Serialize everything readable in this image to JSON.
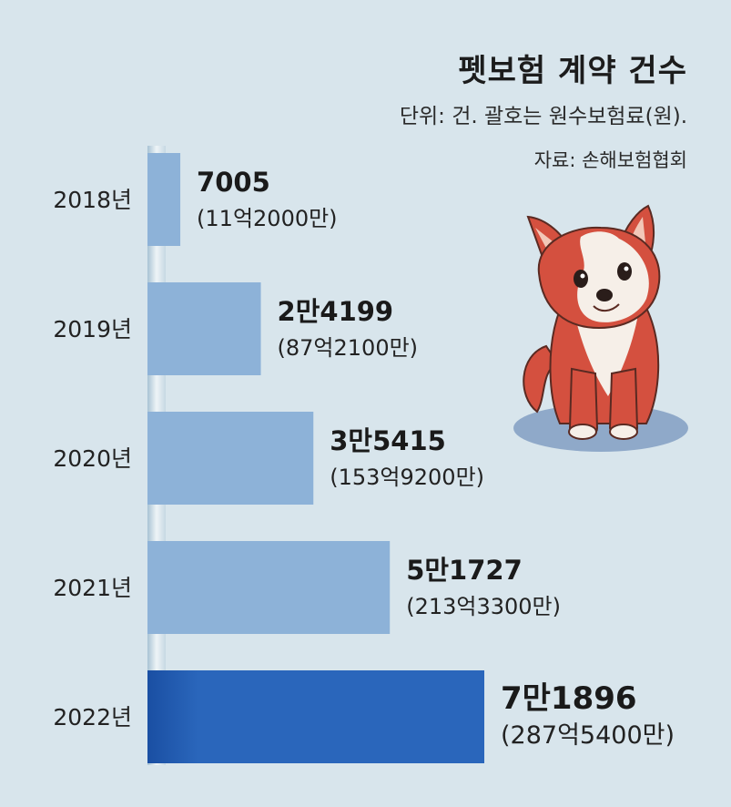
{
  "title": "펫보험 계약 건수",
  "subtitle": "단위: 건. 괄호는 원수보험료(원).",
  "source": "자료: 손해보험협회",
  "colors": {
    "bar": "#8db2d8",
    "highlight": "#2862b6",
    "axis": "#e9f0f4",
    "background": "#d8e5ec"
  },
  "chart_data": {
    "type": "bar",
    "orientation": "horizontal",
    "categories": [
      "2018년",
      "2019년",
      "2020년",
      "2021년",
      "2022년"
    ],
    "values": [
      7005,
      24199,
      35415,
      51727,
      71896
    ],
    "value_labels": [
      "7005",
      "2만4199",
      "3만5415",
      "5만1727",
      "7만1896"
    ],
    "premium_labels": [
      "(11억2000만)",
      "(87억2100만)",
      "(153억9200만)",
      "(213억3300만)",
      "(287억5400만)"
    ],
    "premiums": [
      1120000000,
      8721000000,
      15392000000,
      21333000000,
      28754000000
    ],
    "highlight_index": 4,
    "xlim": [
      0,
      71896
    ],
    "grid": false
  }
}
